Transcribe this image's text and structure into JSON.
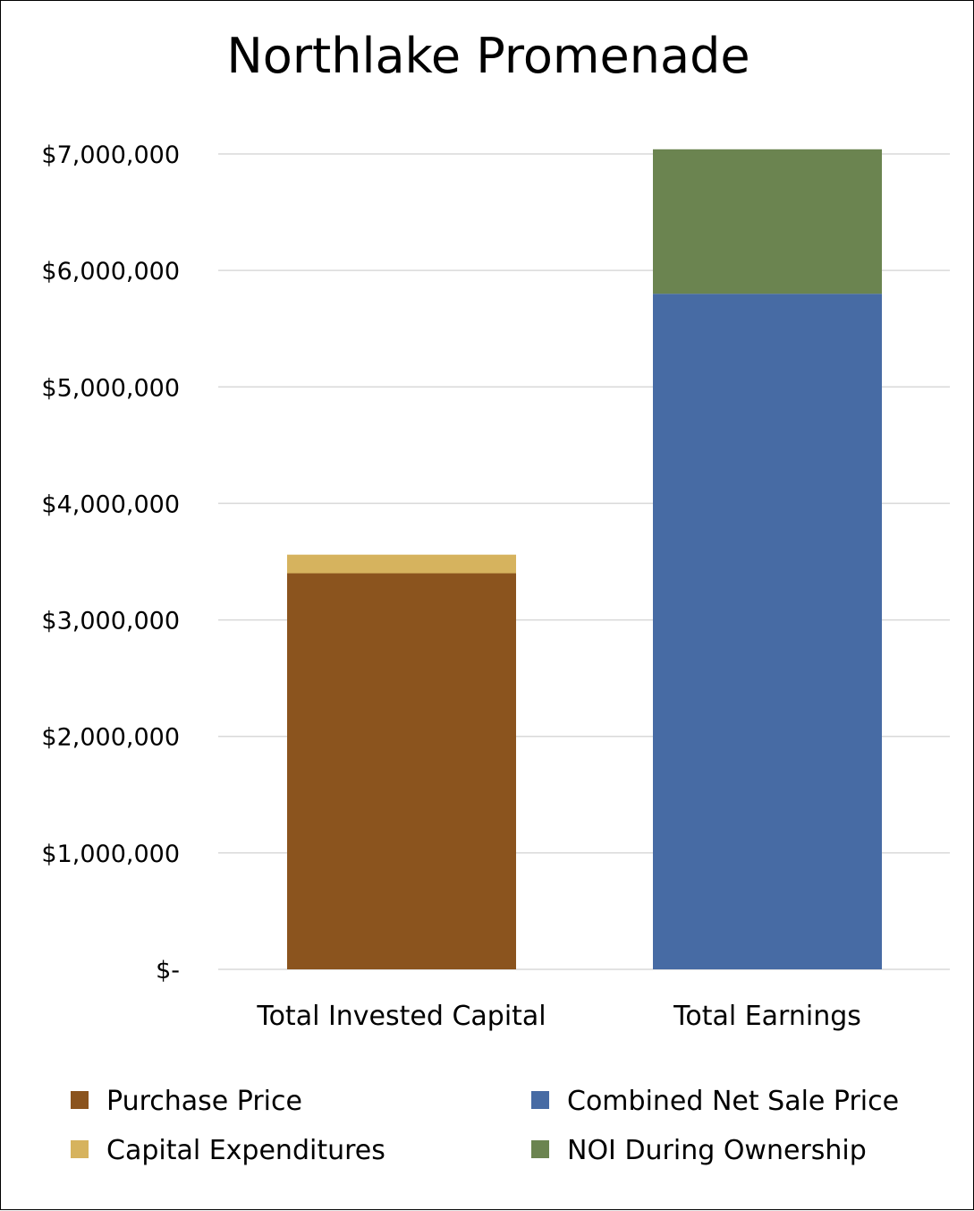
{
  "chart_data": {
    "type": "bar",
    "stacked": true,
    "title": "Northlake Promenade",
    "xlabel": "",
    "ylabel": "",
    "categories": [
      "Total Invested Capital",
      "Total Earnings"
    ],
    "y_ticks": [
      0,
      1000000,
      2000000,
      3000000,
      4000000,
      5000000,
      6000000,
      7000000
    ],
    "y_tick_labels": [
      "$-",
      "$1,000,000",
      "$2,000,000",
      "$3,000,000",
      "$4,000,000",
      "$5,000,000",
      "$6,000,000",
      "$7,000,000"
    ],
    "ylim": [
      0,
      7000000
    ],
    "grid": true,
    "legend_position": "bottom",
    "series": [
      {
        "name": "Purchase Price",
        "color": "#8B541E",
        "values": [
          3400000,
          0
        ]
      },
      {
        "name": "Capital Expenditures",
        "color": "#D6B35E",
        "values": [
          160000,
          0
        ]
      },
      {
        "name": "Combined Net Sale Price",
        "color": "#476BA4",
        "values": [
          0,
          5800000
        ]
      },
      {
        "name": "NOI During Ownership",
        "color": "#6B8450",
        "values": [
          0,
          1240000
        ]
      }
    ]
  }
}
